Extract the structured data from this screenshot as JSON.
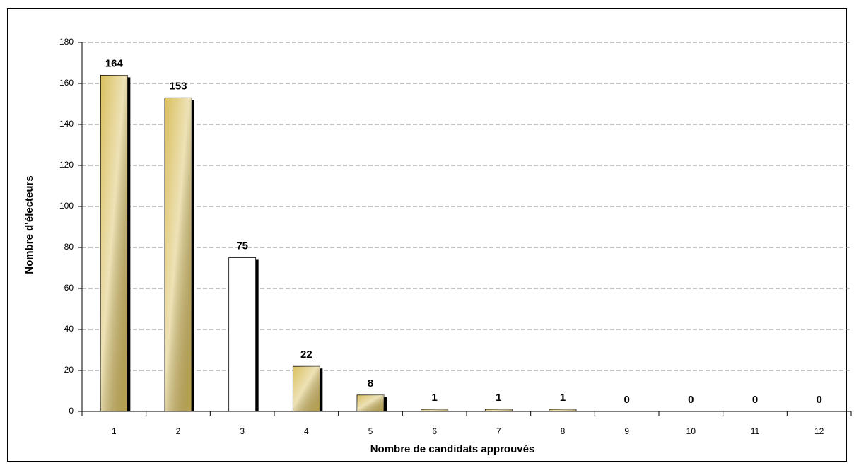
{
  "chart_data": {
    "type": "bar",
    "x_label": "Nombre de candidats approuvés",
    "y_label": "Nombre d'électeurs",
    "categories": [
      "1",
      "2",
      "3",
      "4",
      "5",
      "6",
      "7",
      "8",
      "9",
      "10",
      "11",
      "12"
    ],
    "values": [
      164,
      153,
      75,
      22,
      8,
      1,
      1,
      1,
      0,
      0,
      0,
      0
    ],
    "colors": [
      "#d9bf5e",
      "#d9bf5e",
      "#ffffff",
      "#d9bf5e",
      "#d9bf5e",
      "#d9bf5e",
      "#d9bf5e",
      "#d9bf5e",
      "#d9bf5e",
      "#d9bf5e",
      "#d9bf5e",
      "#d9bf5e"
    ],
    "ylim": [
      0,
      180
    ],
    "yticks": [
      0,
      20,
      40,
      60,
      80,
      100,
      120,
      140,
      160,
      180
    ],
    "grid": true
  }
}
